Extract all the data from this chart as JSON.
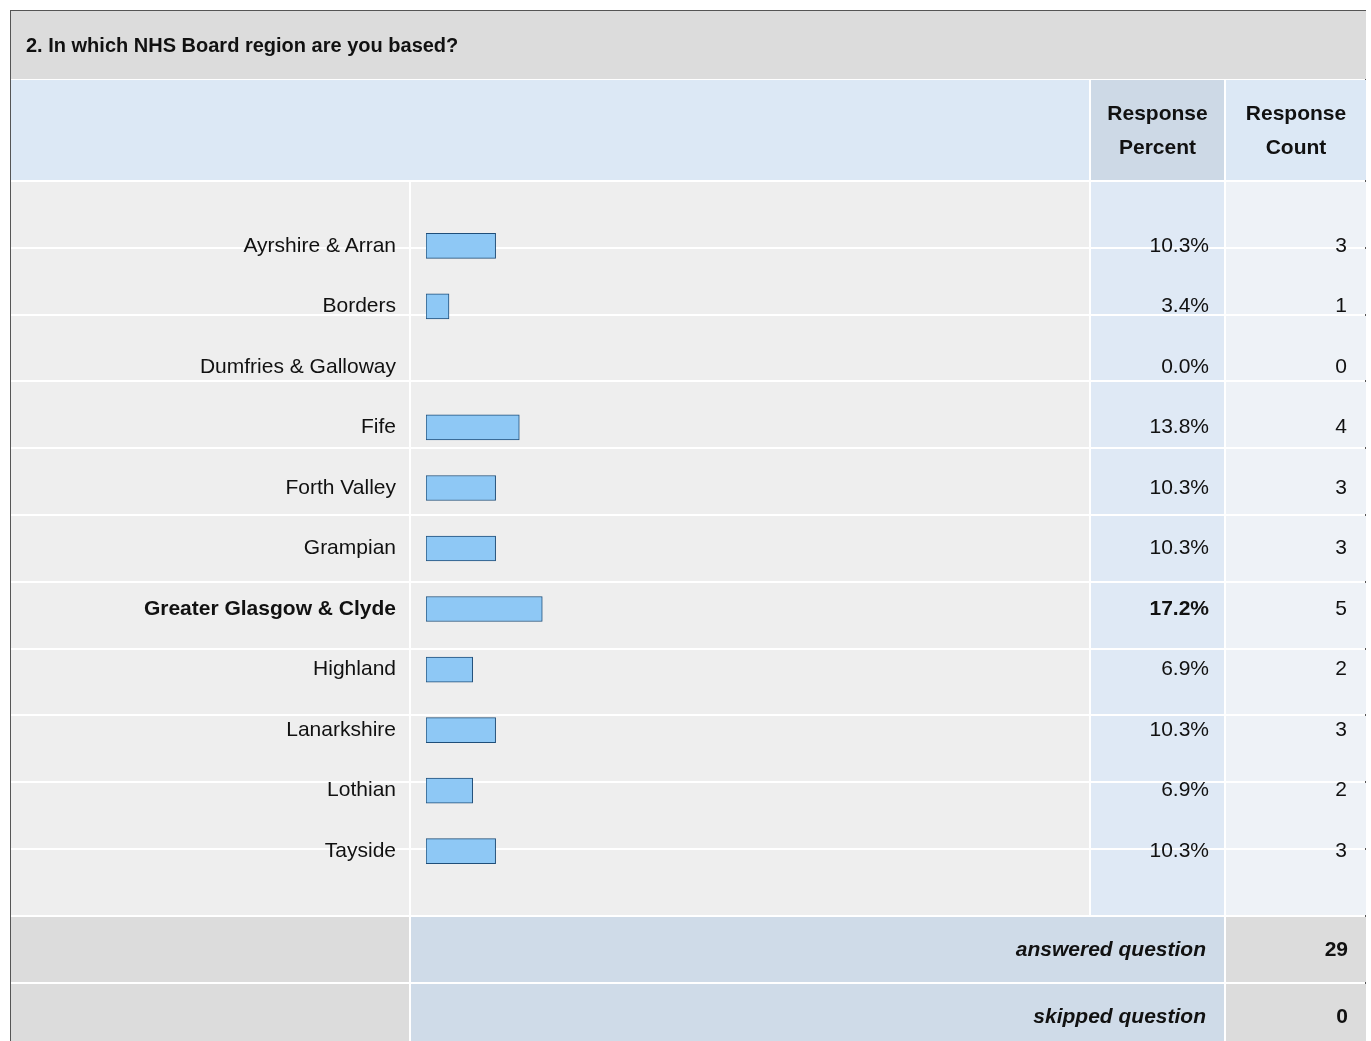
{
  "chart_data": {
    "type": "bar",
    "orientation": "horizontal",
    "title": "2. In which NHS Board region are you based?",
    "categories": [
      "Ayrshire & Arran",
      "Borders",
      "Dumfries & Galloway",
      "Fife",
      "Forth Valley",
      "Grampian",
      "Greater Glasgow & Clyde",
      "Highland",
      "Lanarkshire",
      "Lothian",
      "Tayside"
    ],
    "values": [
      10.3,
      3.4,
      0,
      13.8,
      10.3,
      10.3,
      17.2,
      6.9,
      10.3,
      6.9,
      10.3
    ],
    "value_labels": [
      "10.3%",
      "3.4%",
      "0.0%",
      "13.8%",
      "10.3%",
      "10.3%",
      "17.2%",
      "6.9%",
      "10.3%",
      "6.9%",
      "10.3%"
    ],
    "color": "#8ec8f5",
    "tick_labels": "y",
    "annotations": [
      "Response Percent",
      "Response Count",
      "answered question",
      "29",
      "skipped question",
      "0",
      "3",
      "1",
      "0",
      "4",
      "3",
      "3",
      "5",
      "2",
      "3",
      "2",
      "3"
    ]
  }
}
